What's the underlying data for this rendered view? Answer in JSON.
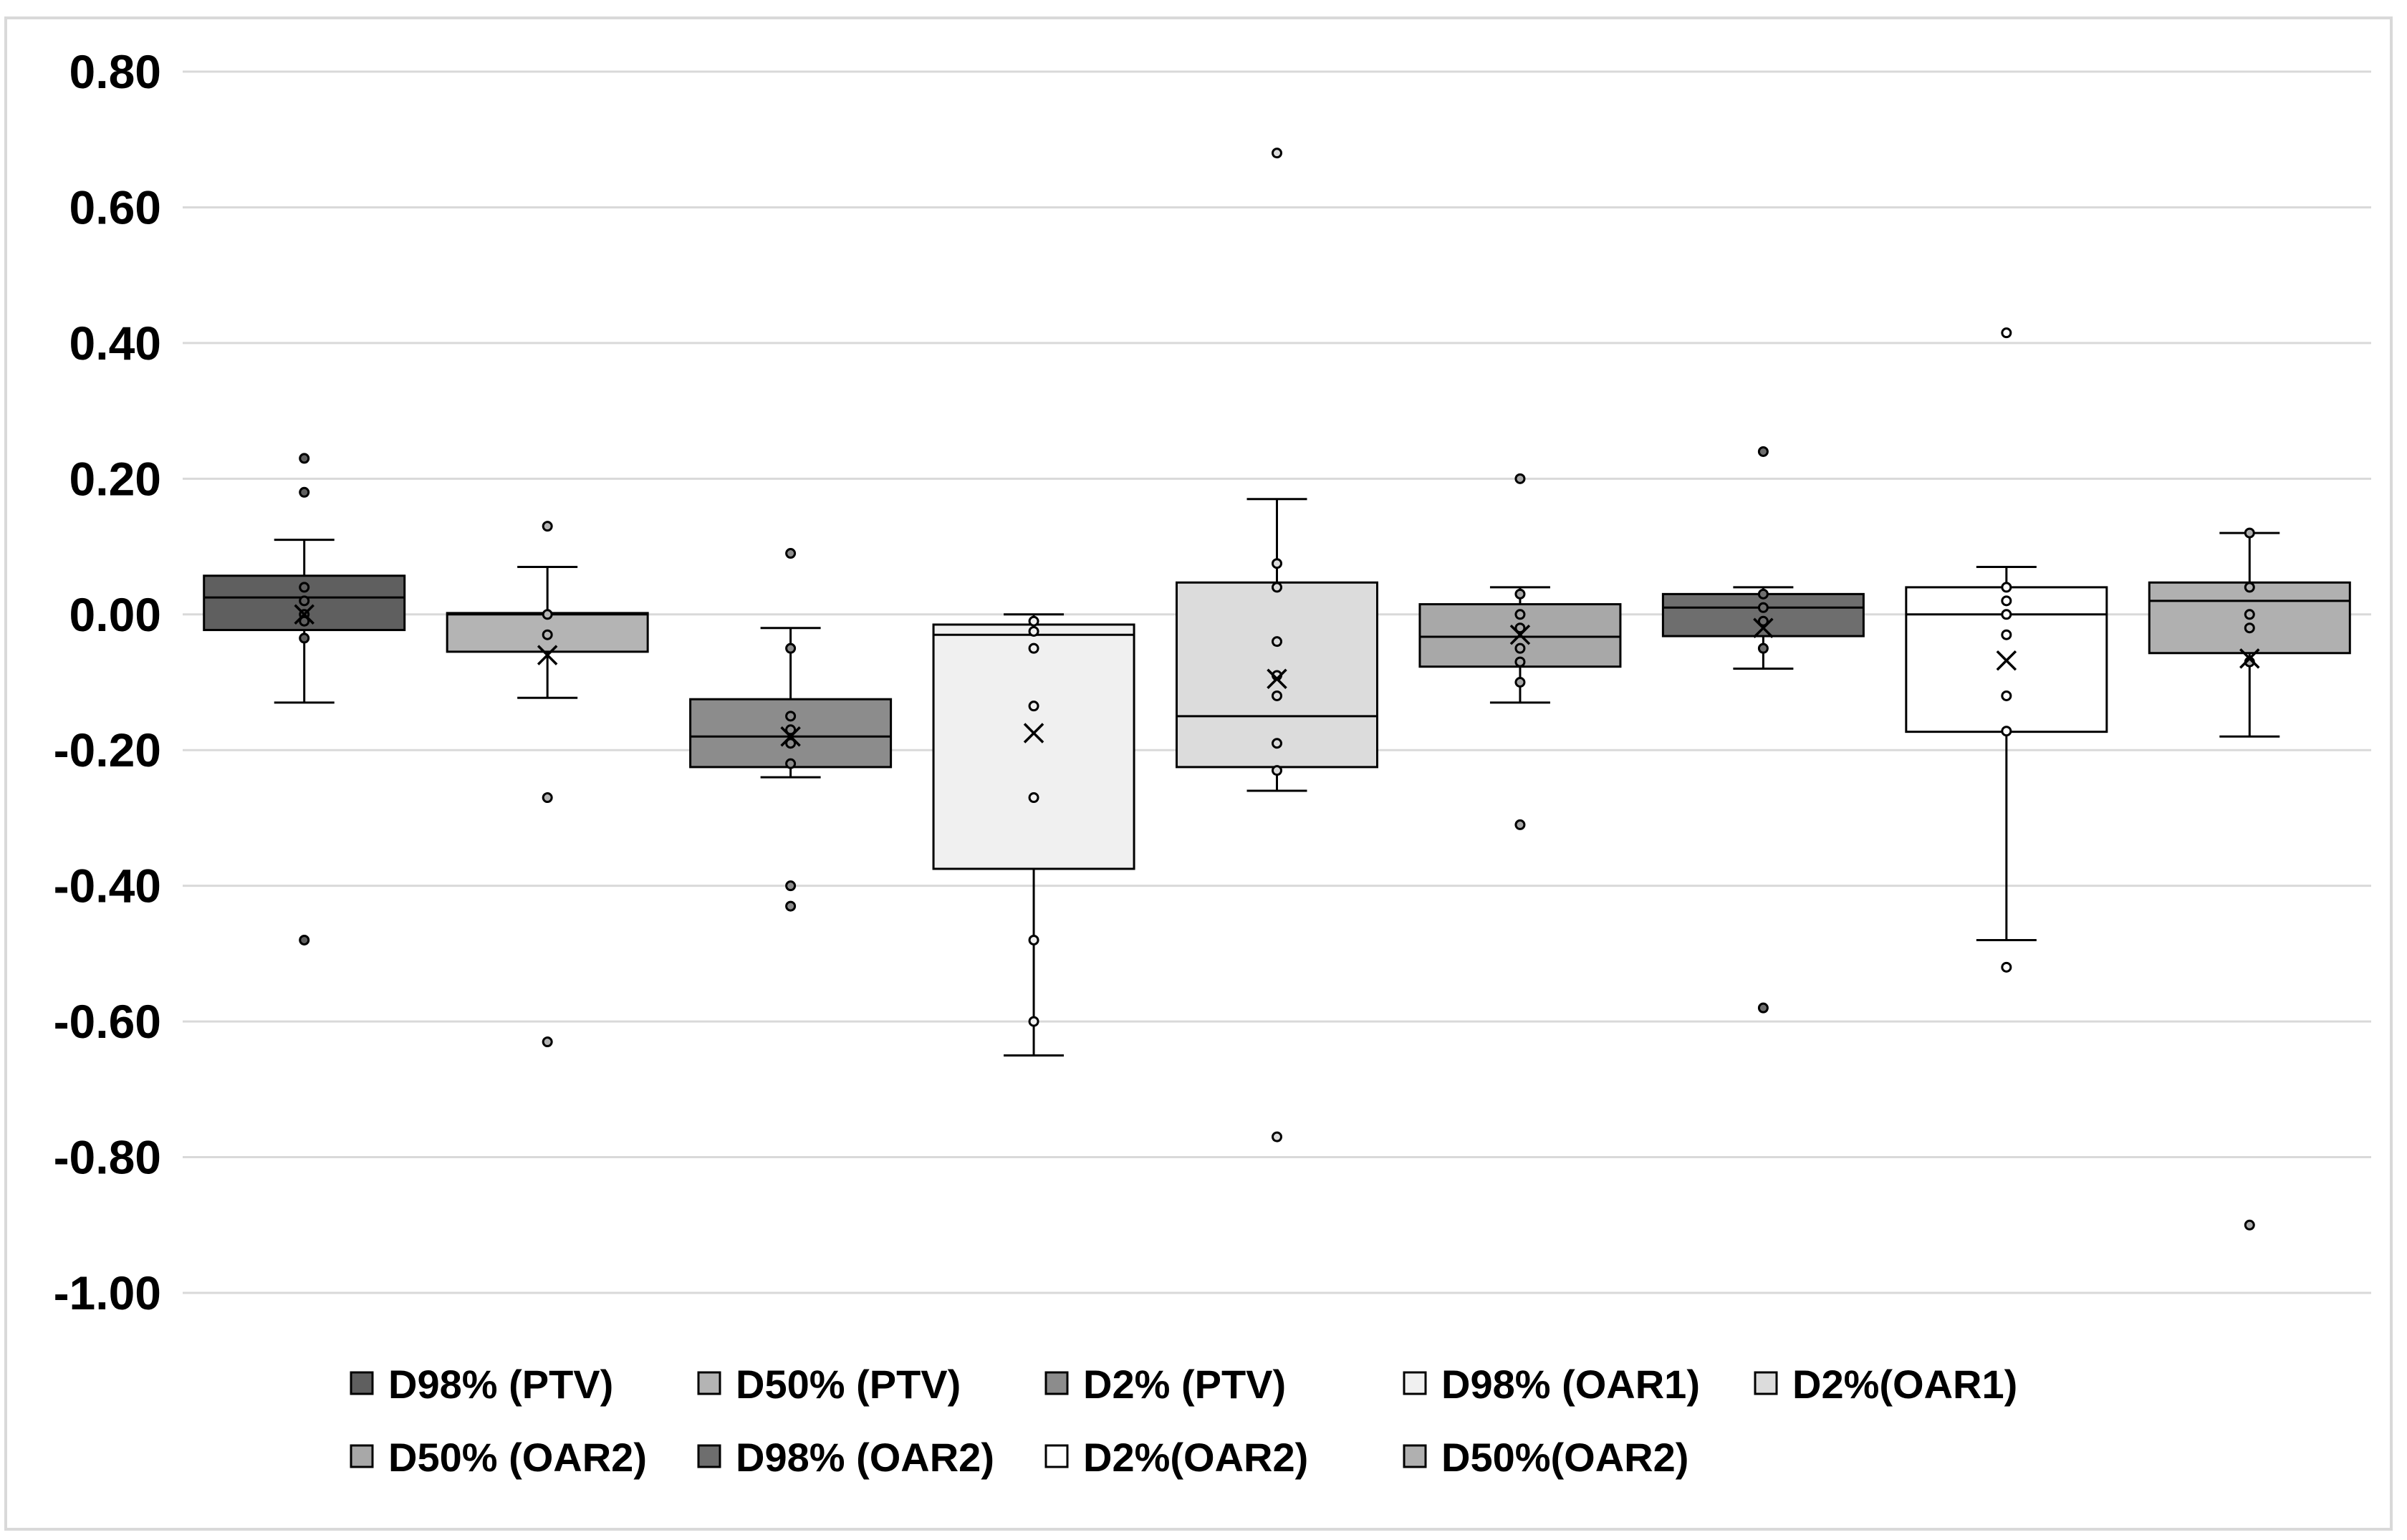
{
  "chart_data": {
    "type": "box",
    "title": "",
    "xlabel": "",
    "ylabel": "",
    "ylim": [
      -1.0,
      0.8
    ],
    "yticks": [
      0.8,
      0.6,
      0.4,
      0.2,
      0.0,
      -0.2,
      -0.4,
      -0.6,
      -0.8,
      -1.0
    ],
    "ytick_labels": [
      "0.80",
      "0.60",
      "0.40",
      "0.20",
      "0.00",
      "-0.20",
      "-0.40",
      "-0.60",
      "-0.80",
      "-1.00"
    ],
    "grid": true,
    "legend_position": "bottom",
    "series": [
      {
        "name": "D98% (PTV)",
        "color": "#5f5f5f",
        "whisker_low": -0.13,
        "q1": -0.023,
        "median": 0.025,
        "q3": 0.057,
        "whisker_high": 0.11,
        "mean": 0.0,
        "points": [
          0.23,
          0.18,
          0.04,
          0.02,
          0.0,
          -0.01,
          -0.035,
          -0.48
        ]
      },
      {
        "name": "D50% (PTV)",
        "color": "#b4b4b4",
        "whisker_low": -0.123,
        "q1": -0.055,
        "median": 0.0,
        "q3": 0.002,
        "whisker_high": 0.07,
        "mean": -0.06,
        "points": [
          0.13,
          0.0,
          -0.03,
          -0.27,
          -0.63
        ]
      },
      {
        "name": "D2% (PTV)",
        "color": "#8c8c8c",
        "whisker_low": -0.24,
        "q1": -0.225,
        "median": -0.18,
        "q3": -0.125,
        "whisker_high": -0.02,
        "mean": -0.18,
        "points": [
          0.09,
          -0.05,
          -0.15,
          -0.17,
          -0.19,
          -0.22,
          -0.4,
          -0.43
        ]
      },
      {
        "name": "D98% (OAR1)",
        "color": "#f0f0f0",
        "whisker_low": -0.65,
        "q1": -0.375,
        "median": -0.03,
        "q3": -0.015,
        "whisker_high": 0.0,
        "mean": -0.175,
        "points": [
          -0.01,
          -0.025,
          -0.05,
          -0.135,
          -0.27,
          -0.48,
          -0.6
        ]
      },
      {
        "name": "D2%(OAR1)",
        "color": "#dcdcdc",
        "whisker_low": -0.26,
        "q1": -0.225,
        "median": -0.15,
        "q3": 0.047,
        "whisker_high": 0.17,
        "mean": -0.095,
        "points": [
          0.68,
          0.075,
          0.04,
          -0.04,
          -0.09,
          -0.12,
          -0.19,
          -0.23,
          -0.77
        ]
      },
      {
        "name": "D50% (OAR2)",
        "color": "#a8a8a8",
        "whisker_low": -0.13,
        "q1": -0.077,
        "median": -0.033,
        "q3": 0.015,
        "whisker_high": 0.04,
        "mean": -0.03,
        "points": [
          0.2,
          0.03,
          0.0,
          -0.02,
          -0.05,
          -0.07,
          -0.1,
          -0.31
        ]
      },
      {
        "name": "D98% (OAR2)",
        "color": "#6e6e6e",
        "whisker_low": -0.08,
        "q1": -0.032,
        "median": 0.01,
        "q3": 0.03,
        "whisker_high": 0.04,
        "mean": -0.02,
        "points": [
          0.24,
          0.03,
          0.01,
          -0.01,
          -0.05,
          -0.58
        ]
      },
      {
        "name": "D2%(OAR2)",
        "color": "#ffffff",
        "whisker_low": -0.48,
        "q1": -0.173,
        "median": 0.0,
        "q3": 0.04,
        "whisker_high": 0.07,
        "mean": -0.068,
        "points": [
          0.415,
          0.04,
          0.02,
          0.0,
          -0.03,
          -0.12,
          -0.172,
          -0.52
        ]
      },
      {
        "name": "D50%(OAR2)",
        "color": "#b0b0b0",
        "whisker_low": -0.18,
        "q1": -0.057,
        "median": 0.02,
        "q3": 0.047,
        "whisker_high": 0.12,
        "mean": -0.065,
        "points": [
          0.12,
          0.04,
          0.0,
          -0.02,
          -0.07,
          -0.9
        ]
      }
    ]
  }
}
